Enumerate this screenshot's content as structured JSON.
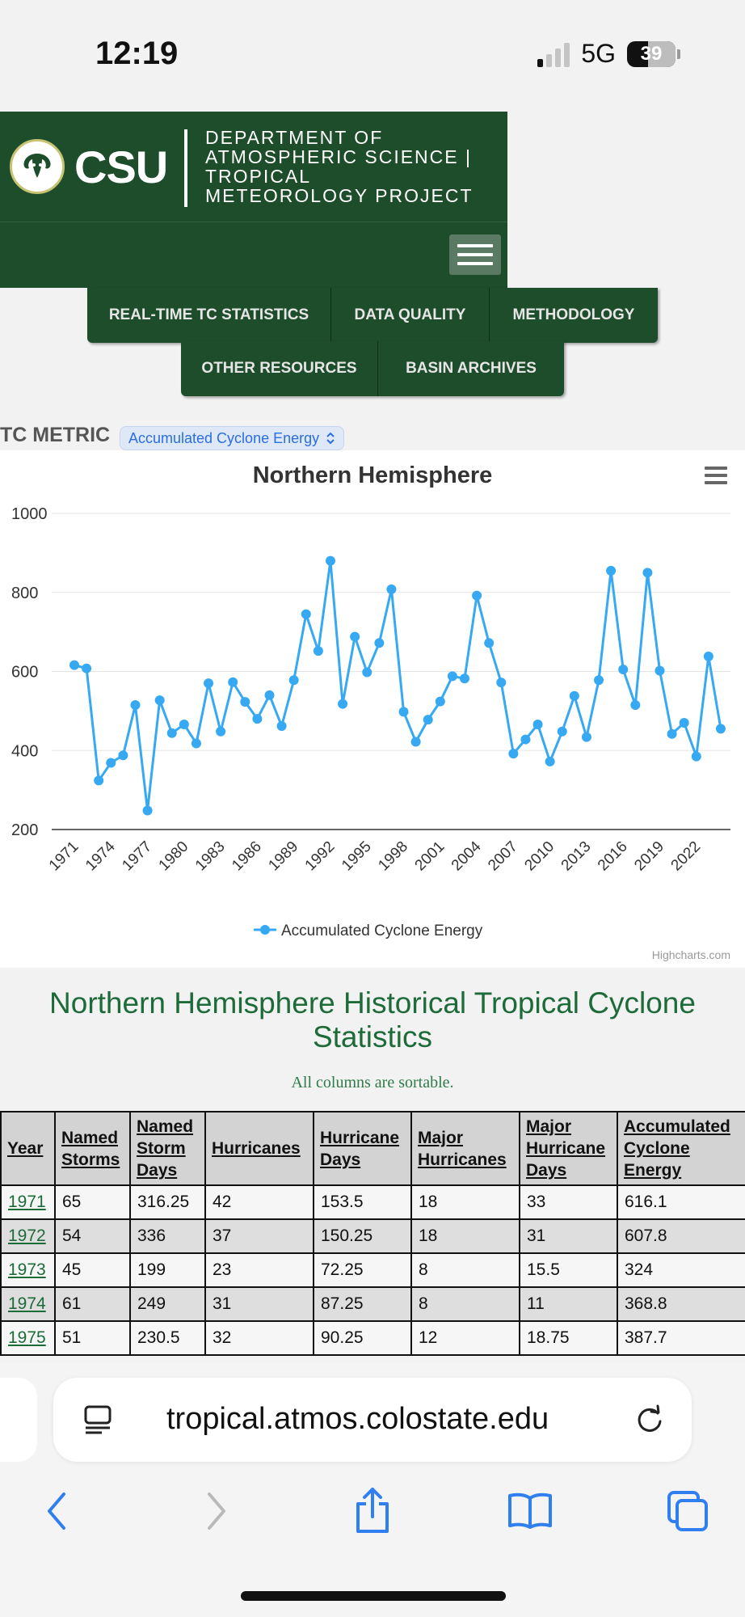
{
  "status": {
    "time": "12:19",
    "network": "5G",
    "battery": "39"
  },
  "header": {
    "logo_text": "CSU",
    "department": "DEPARTMENT OF ATMOSPHERIC SCIENCE | TROPICAL METEOROLOGY PROJECT"
  },
  "nav": {
    "row1": [
      "REAL-TIME TC STATISTICS",
      "DATA QUALITY",
      "METHODOLOGY"
    ],
    "row2": [
      "OTHER RESOURCES",
      "BASIN ARCHIVES"
    ]
  },
  "metric": {
    "label": "TC METRIC",
    "selected": "Accumulated Cyclone Energy"
  },
  "chart_data": {
    "type": "line",
    "title": "Northern Hemisphere",
    "x": [
      1971,
      1972,
      1973,
      1974,
      1975,
      1976,
      1977,
      1978,
      1979,
      1980,
      1981,
      1982,
      1983,
      1984,
      1985,
      1986,
      1987,
      1988,
      1989,
      1990,
      1991,
      1992,
      1993,
      1994,
      1995,
      1996,
      1997,
      1998,
      1999,
      2000,
      2001,
      2002,
      2003,
      2004,
      2005,
      2006,
      2007,
      2008,
      2009,
      2010,
      2011,
      2012,
      2013,
      2014,
      2015,
      2016,
      2017,
      2018,
      2019,
      2020,
      2021,
      2022,
      2023,
      2024
    ],
    "series": [
      {
        "name": "Accumulated Cyclone Energy",
        "color": "#36a9f2",
        "values": [
          616.1,
          607.8,
          324,
          368.8,
          387.7,
          515,
          248,
          527,
          444,
          466,
          418,
          570,
          448,
          573,
          523,
          480,
          540,
          462,
          578,
          745,
          652,
          880,
          518,
          688,
          598,
          672,
          808,
          498,
          422,
          478,
          524,
          588,
          582,
          792,
          672,
          572,
          392,
          428,
          466,
          372,
          448,
          538,
          434,
          578,
          855,
          605,
          515,
          850,
          602,
          442,
          470,
          385,
          638,
          455
        ]
      }
    ],
    "xticks": [
      "1971",
      "1974",
      "1977",
      "1980",
      "1983",
      "1986",
      "1989",
      "1992",
      "1995",
      "1998",
      "2001",
      "2004",
      "2007",
      "2010",
      "2013",
      "2016",
      "2019",
      "2022"
    ],
    "yticks": [
      "200",
      "400",
      "600",
      "800",
      "1000"
    ],
    "ylim": [
      200,
      1000
    ],
    "grid": true,
    "legend": "bottom-center",
    "credit": "Highcharts.com"
  },
  "stats": {
    "title": "Northern Hemisphere Historical Tropical Cyclone Statistics",
    "subtitle": "All columns are sortable.",
    "headers": [
      "Year",
      "Named Storms",
      "Named Storm Days",
      "Hurricanes",
      "Hurricane Days",
      "Major Hurricanes",
      "Major Hurricane Days",
      "Accumulated Cyclone Energy"
    ],
    "rows": [
      [
        "1971",
        "65",
        "316.25",
        "42",
        "153.5",
        "18",
        "33",
        "616.1"
      ],
      [
        "1972",
        "54",
        "336",
        "37",
        "150.25",
        "18",
        "31",
        "607.8"
      ],
      [
        "1973",
        "45",
        "199",
        "23",
        "72.25",
        "8",
        "15.5",
        "324"
      ],
      [
        "1974",
        "61",
        "249",
        "31",
        "87.25",
        "8",
        "11",
        "368.8"
      ],
      [
        "1975",
        "51",
        "230.5",
        "32",
        "90.25",
        "12",
        "18.75",
        "387.7"
      ]
    ]
  },
  "browser": {
    "url": "tropical.atmos.colostate.edu"
  }
}
